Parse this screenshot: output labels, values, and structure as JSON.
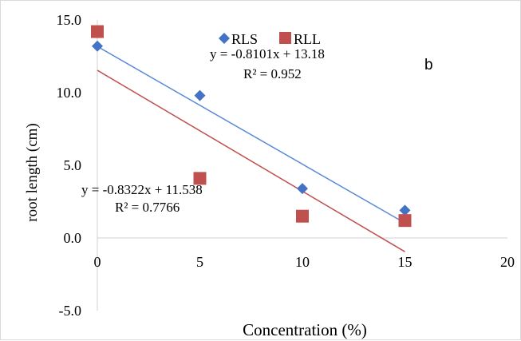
{
  "chart_data": {
    "type": "scatter",
    "title": "",
    "panel_label": "b",
    "xlabel": "Concentration (%)",
    "ylabel": "root length (cm)",
    "xlim": [
      0,
      20
    ],
    "ylim": [
      -5,
      15
    ],
    "x_ticks": [
      "0",
      "5",
      "10",
      "15",
      "20"
    ],
    "y_ticks": [
      "-5.0",
      "0.0",
      "5.0",
      "10.0",
      "15.0"
    ],
    "grid": false,
    "legend_position": "top-center",
    "series": [
      {
        "name": "RLS",
        "marker": "diamond",
        "color": "#4472c4",
        "x": [
          0,
          5,
          10,
          15
        ],
        "y": [
          13.2,
          9.8,
          3.4,
          1.9
        ],
        "trendline": {
          "slope": -0.8101,
          "intercept": 13.18,
          "color": "#5b8bd6"
        },
        "equation": "y = -0.8101x + 13.18",
        "r_squared": "R² = 0.952"
      },
      {
        "name": "RLL",
        "marker": "square",
        "color": "#c0504d",
        "x": [
          0,
          5,
          10,
          15
        ],
        "y": [
          14.2,
          4.1,
          1.5,
          1.2
        ],
        "trendline": {
          "slope": -0.8322,
          "intercept": 11.538,
          "color": "#c0504d"
        },
        "equation": "y = -0.8322x + 11.538",
        "r_squared": "R² = 0.7766"
      }
    ]
  }
}
